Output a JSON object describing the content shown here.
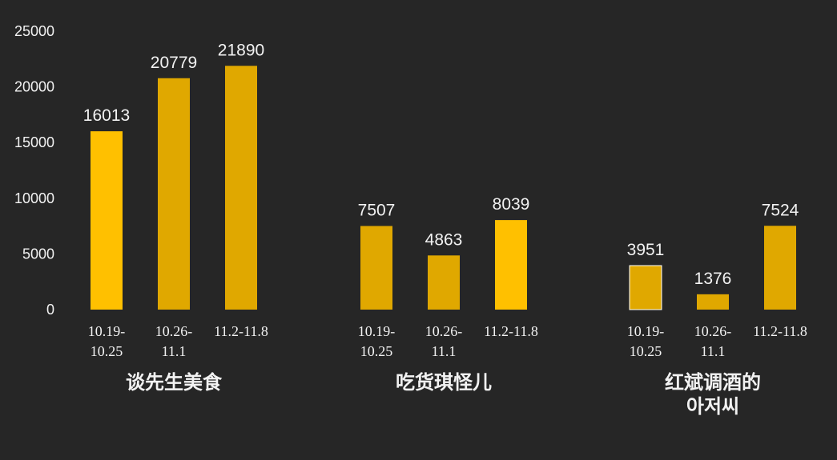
{
  "chart_data": {
    "type": "bar",
    "title": "",
    "xlabel": "",
    "ylabel": "",
    "ylim": [
      0,
      25000
    ],
    "yticks": [
      "0",
      "5000",
      "10000",
      "15000",
      "20000",
      "25000"
    ],
    "grid": false,
    "legend": "none",
    "colors": {
      "background": "#262626",
      "bar": "#e0a800",
      "bar_highlight": "#ffc000",
      "bar_outline": "#ffffff",
      "text": "#f2f2f2"
    },
    "groups": [
      {
        "name_lines": [
          "谈先生美食"
        ],
        "bars": [
          {
            "label_lines": [
              "10.19-",
              "10.25"
            ],
            "value": 16013,
            "highlight": true
          },
          {
            "label_lines": [
              "10.26-",
              "11.1"
            ],
            "value": 20779,
            "highlight": false
          },
          {
            "label_lines": [
              "11.2-11.8"
            ],
            "value": 21890,
            "highlight": false
          }
        ]
      },
      {
        "name_lines": [
          "吃货琪怪儿"
        ],
        "bars": [
          {
            "label_lines": [
              "10.19-",
              "10.25"
            ],
            "value": 7507,
            "highlight": false
          },
          {
            "label_lines": [
              "10.26-",
              "11.1"
            ],
            "value": 4863,
            "highlight": false
          },
          {
            "label_lines": [
              "11.2-11.8"
            ],
            "value": 8039,
            "highlight": true
          }
        ]
      },
      {
        "name_lines": [
          "红斌调酒的",
          "아저씨"
        ],
        "bars": [
          {
            "label_lines": [
              "10.19-",
              "10.25"
            ],
            "value": 3951,
            "highlight": false,
            "outlined": true
          },
          {
            "label_lines": [
              "10.26-",
              "11.1"
            ],
            "value": 1376,
            "highlight": false
          },
          {
            "label_lines": [
              "11.2-11.8"
            ],
            "value": 7524,
            "highlight": false
          }
        ]
      }
    ]
  }
}
